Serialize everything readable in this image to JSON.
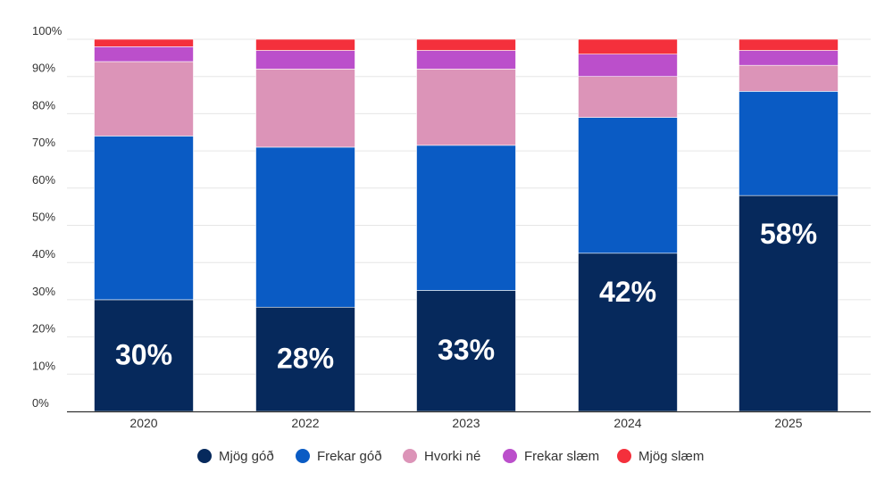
{
  "chart_data": {
    "type": "bar",
    "stacked": true,
    "categories": [
      "2020",
      "2022",
      "2023",
      "2024",
      "2025"
    ],
    "series": [
      {
        "name": "Mjög góð",
        "color": "#06295c",
        "values": [
          30,
          28,
          32.5,
          42.5,
          58
        ]
      },
      {
        "name": "Frekar góð",
        "color": "#0a5bc4",
        "values": [
          44,
          43,
          39,
          36.5,
          28
        ]
      },
      {
        "name": "Hvorki né",
        "color": "#dc94b8",
        "values": [
          20,
          21,
          20.5,
          11,
          7
        ]
      },
      {
        "name": "Frekar slæm",
        "color": "#bb4fcb",
        "values": [
          4,
          5,
          5,
          6,
          4
        ]
      },
      {
        "name": "Mjög slæm",
        "color": "#f4303c",
        "values": [
          2,
          3,
          3,
          4,
          3
        ]
      }
    ],
    "data_labels": [
      "30%",
      "28%",
      "33%",
      "42%",
      "58%"
    ],
    "y_ticks": [
      "0%",
      "10%",
      "20%",
      "30%",
      "40%",
      "50%",
      "60%",
      "70%",
      "80%",
      "90%",
      "100%"
    ],
    "ylim": [
      0,
      100
    ],
    "grid": true,
    "legend_position": "bottom",
    "title": "",
    "xlabel": "",
    "ylabel": ""
  }
}
